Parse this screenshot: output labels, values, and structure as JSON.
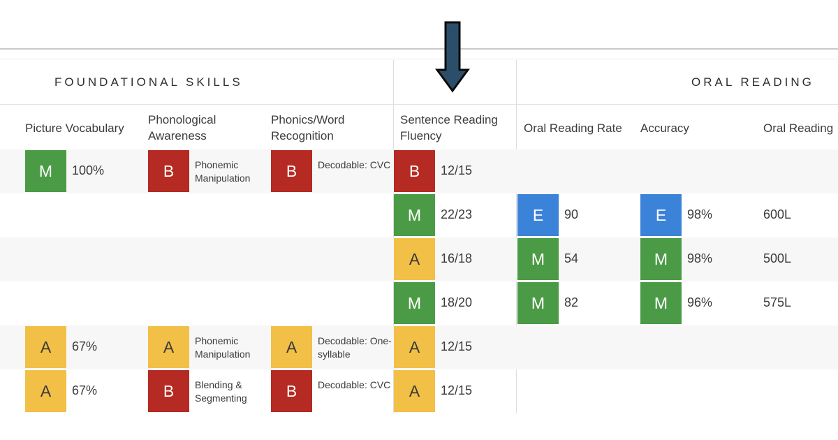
{
  "colors": {
    "M": "#4b9b46",
    "B": "#b52a22",
    "A": "#f2c046",
    "E": "#3b82d9",
    "arrow": "#2b4f6b",
    "band": "#f7f7f7"
  },
  "sections": {
    "foundational": "FOUNDATIONAL SKILLS",
    "oral": "ORAL READING"
  },
  "columns": {
    "picture_vocabulary": "Picture Vocabulary",
    "phonological_awareness": "Phonological Awareness",
    "phonics_word_recognition": "Phonics/Word Recognition",
    "sentence_reading_fluency": "Sentence Reading Fluency",
    "oral_reading_rate": "Oral Reading Rate",
    "accuracy": "Accuracy",
    "oral_reading": "Oral Reading"
  },
  "rows": [
    {
      "pv": {
        "level": "M",
        "value": "100%"
      },
      "pa": {
        "level": "B",
        "note": "Phonemic Manipulation"
      },
      "ph": {
        "level": "B",
        "note": "Decodable: CVC"
      },
      "srf": {
        "level": "B",
        "value": "12/15"
      }
    },
    {
      "srf": {
        "level": "M",
        "value": "22/23"
      },
      "orr": {
        "level": "E",
        "value": "90"
      },
      "acc": {
        "level": "E",
        "value": "98%"
      },
      "or": {
        "value": "600L"
      }
    },
    {
      "srf": {
        "level": "A",
        "value": "16/18"
      },
      "orr": {
        "level": "M",
        "value": "54"
      },
      "acc": {
        "level": "M",
        "value": "98%"
      },
      "or": {
        "value": "500L"
      }
    },
    {
      "srf": {
        "level": "M",
        "value": "18/20"
      },
      "orr": {
        "level": "M",
        "value": "82"
      },
      "acc": {
        "level": "M",
        "value": "96%"
      },
      "or": {
        "value": "575L"
      }
    },
    {
      "pv": {
        "level": "A",
        "value": "67%"
      },
      "pa": {
        "level": "A",
        "note": "Phonemic Manipulation"
      },
      "ph": {
        "level": "A",
        "note": "Decodable: One-syllable"
      },
      "srf": {
        "level": "A",
        "value": "12/15"
      }
    },
    {
      "pv": {
        "level": "A",
        "value": "67%"
      },
      "pa": {
        "level": "B",
        "note": "Blending & Segmenting"
      },
      "ph": {
        "level": "B",
        "note": "Decodable: CVC"
      },
      "srf": {
        "level": "A",
        "value": "12/15"
      }
    }
  ]
}
